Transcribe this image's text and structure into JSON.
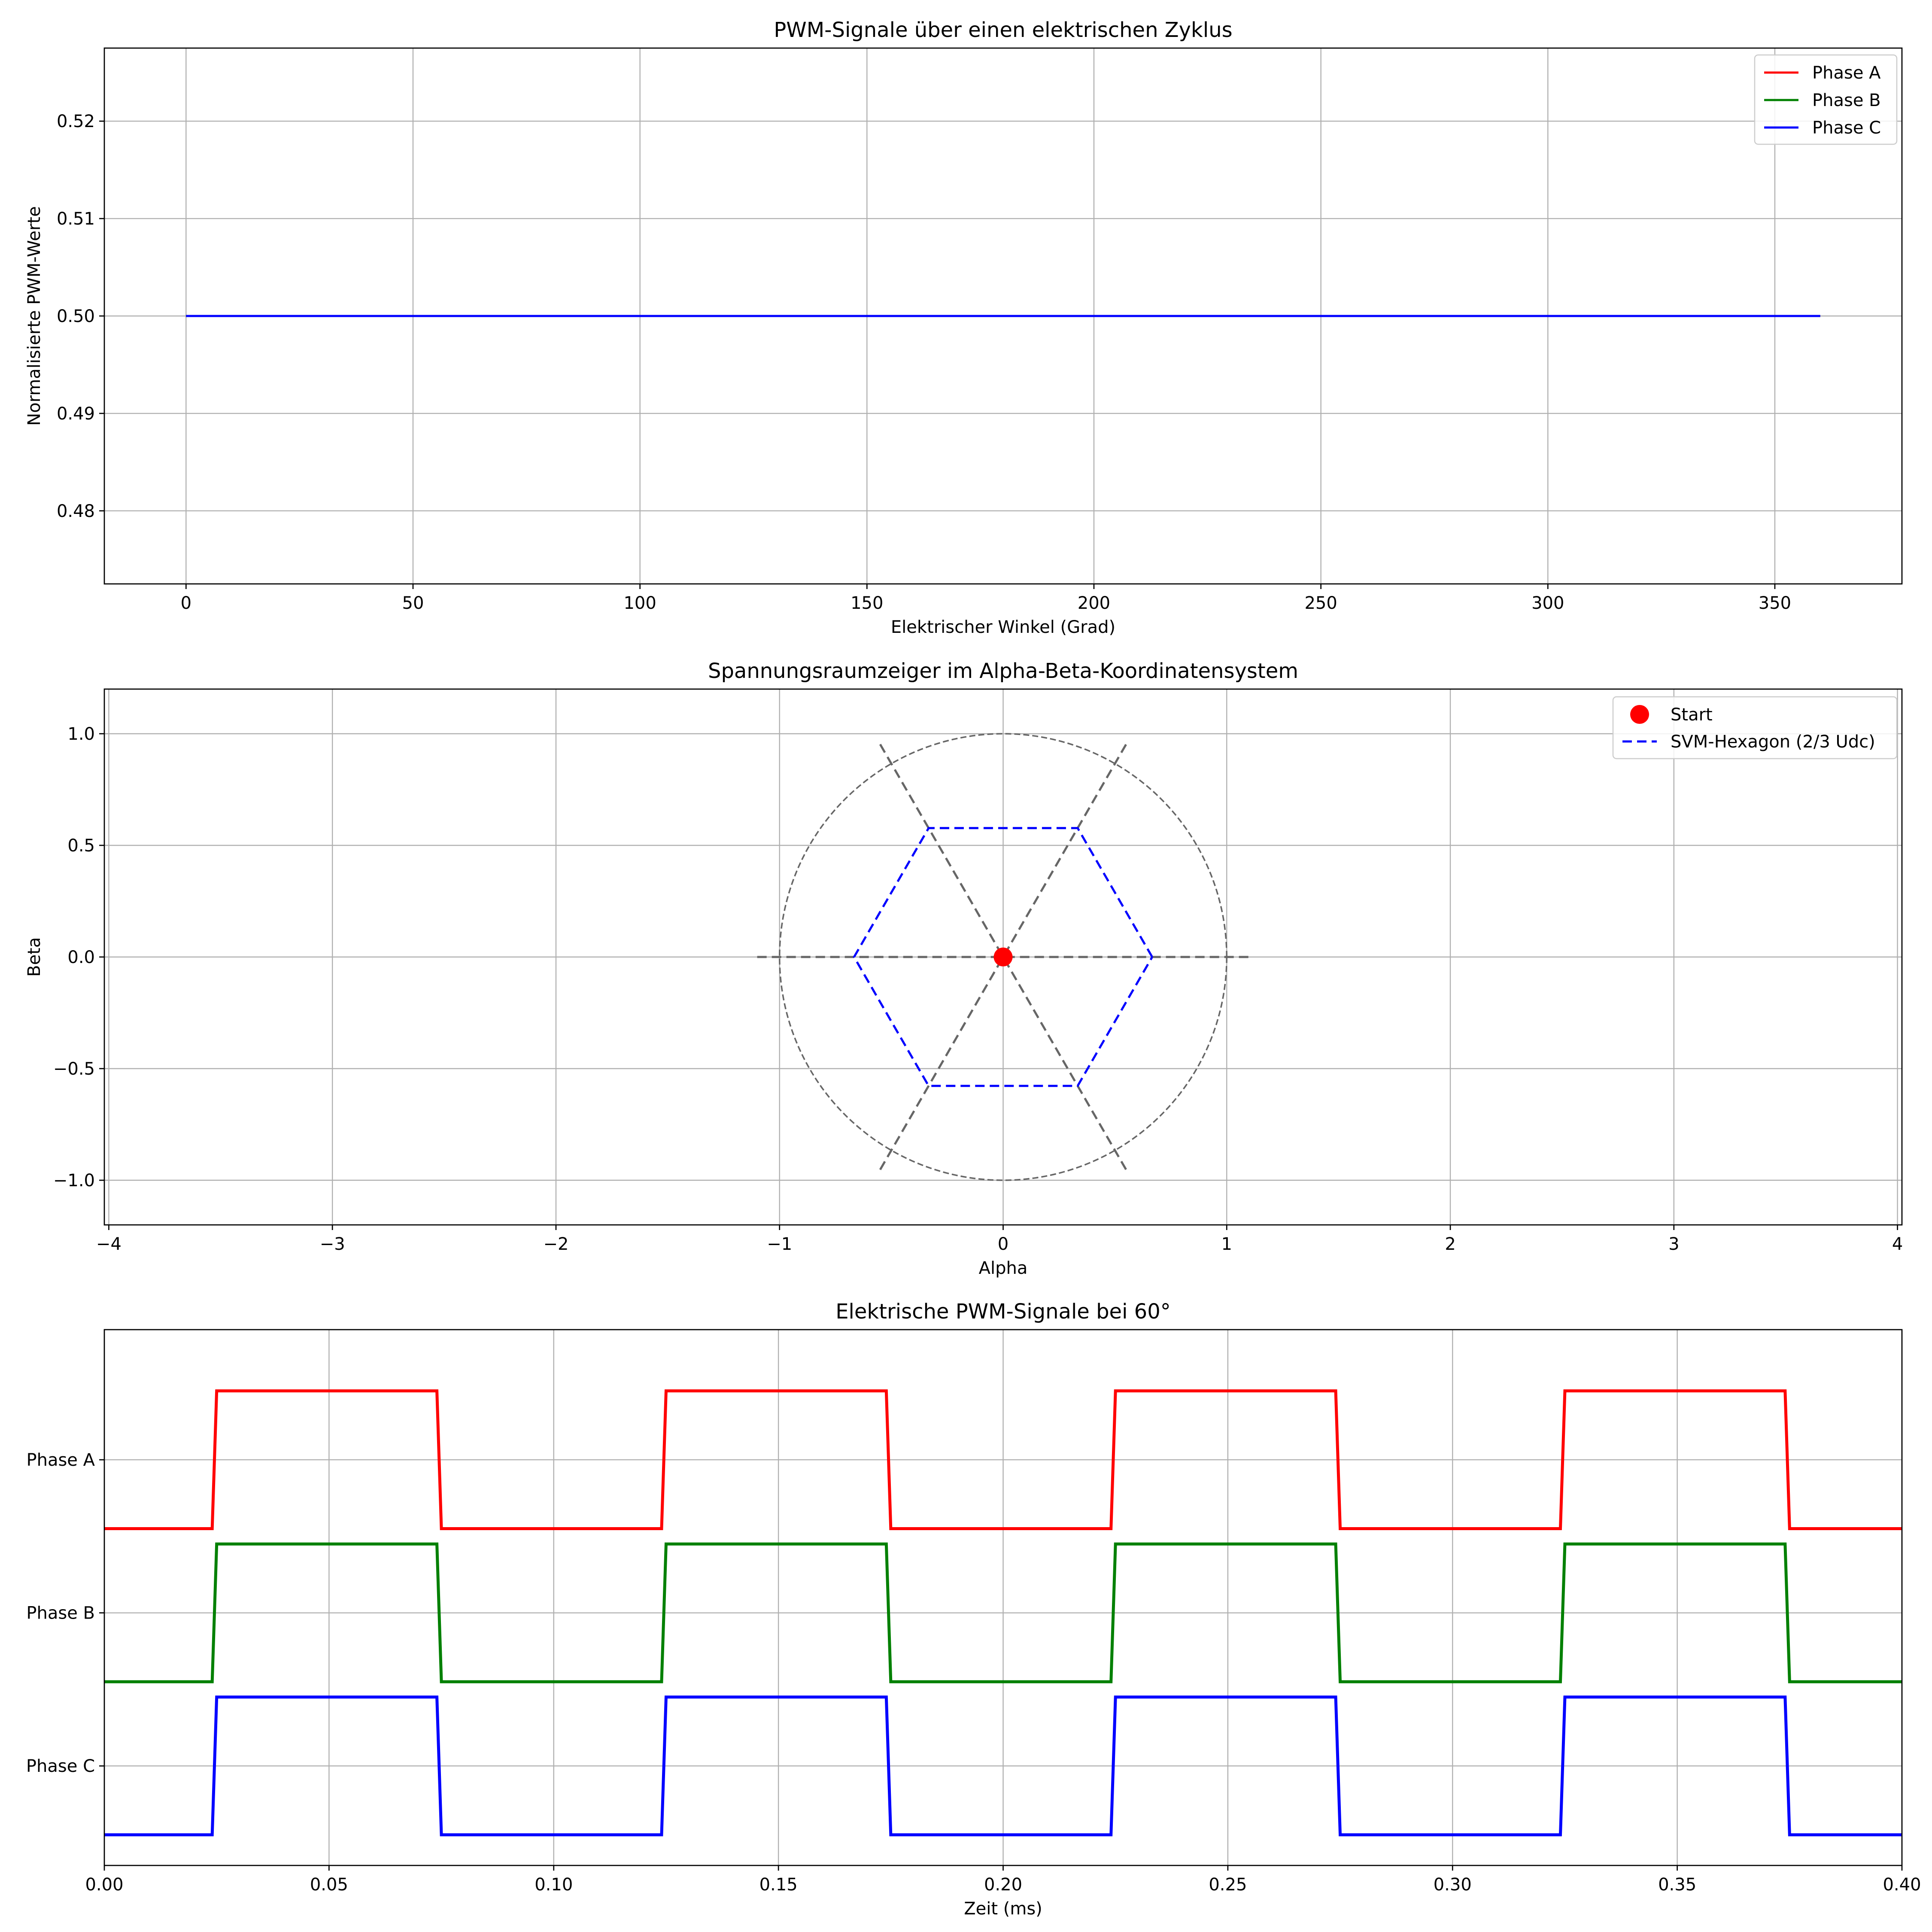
{
  "chart_data": [
    {
      "type": "line",
      "title": "PWM-Signale über einen elektrischen Zyklus",
      "xlabel": "Elektrischer Winkel (Grad)",
      "ylabel": "Normalisierte PWM-Werte",
      "xlim": [
        -18,
        378
      ],
      "ylim": [
        0.4725,
        0.5275
      ],
      "xticks": [
        0,
        50,
        100,
        150,
        200,
        250,
        300,
        350
      ],
      "xtick_labels": [
        "0",
        "50",
        "100",
        "150",
        "200",
        "250",
        "300",
        "350"
      ],
      "yticks": [
        0.48,
        0.49,
        0.5,
        0.51,
        0.52
      ],
      "ytick_labels": [
        "0.48",
        "0.49",
        "0.50",
        "0.51",
        "0.52"
      ],
      "grid": true,
      "legend_position": "top-right",
      "series": [
        {
          "name": "Phase A",
          "color": "#ff0000",
          "x": [
            0,
            360
          ],
          "y": [
            0.5,
            0.5
          ]
        },
        {
          "name": "Phase B",
          "color": "#008000",
          "x": [
            0,
            360
          ],
          "y": [
            0.5,
            0.5
          ]
        },
        {
          "name": "Phase C",
          "color": "#0000ff",
          "x": [
            0,
            360
          ],
          "y": [
            0.5,
            0.5
          ]
        }
      ]
    },
    {
      "type": "scatter",
      "title": "Spannungsraumzeiger im Alpha-Beta-Koordinatensystem",
      "xlabel": "Alpha",
      "ylabel": "Beta",
      "xlim": [
        -4.02,
        4.02
      ],
      "ylim": [
        -1.2,
        1.2
      ],
      "xticks": [
        -4,
        -3,
        -2,
        -1,
        0,
        1,
        2,
        3,
        4
      ],
      "xtick_labels": [
        "−4",
        "−3",
        "−2",
        "−1",
        "0",
        "1",
        "2",
        "3",
        "4"
      ],
      "yticks": [
        -1,
        -0.5,
        0,
        0.5,
        1
      ],
      "ytick_labels": [
        "−1.0",
        "−0.5",
        "0.0",
        "0.5",
        "1.0"
      ],
      "grid": true,
      "legend_position": "top-right",
      "start_point": {
        "name": "Start",
        "color": "#ff0000",
        "x": 0,
        "y": 0
      },
      "hexagon": {
        "name": "SVM-Hexagon (2/3 Udc)",
        "color": "#0000ff",
        "x": [
          0.6667,
          0.3333,
          -0.3333,
          -0.6667,
          -0.3333,
          0.3333,
          0.6667
        ],
        "y": [
          0,
          0.5774,
          0.5774,
          0,
          -0.5774,
          -0.5774,
          0
        ]
      },
      "circle": {
        "color": "#666666",
        "radius": 1
      },
      "sector_lines": {
        "color": "#666666",
        "segments": [
          {
            "x1": -1.1,
            "y1": 0,
            "x2": 1.1,
            "y2": 0
          },
          {
            "x1": -0.55,
            "y1": -0.9526,
            "x2": 0.55,
            "y2": 0.9526
          },
          {
            "x1": -0.55,
            "y1": 0.9526,
            "x2": 0.55,
            "y2": -0.9526
          }
        ]
      }
    },
    {
      "type": "line",
      "title": "Elektrische PWM-Signale bei 60°",
      "xlabel": "Zeit (ms)",
      "ylabel": "",
      "xlim": [
        0,
        0.4
      ],
      "ylim": [
        -0.65,
        2.85
      ],
      "xticks": [
        0,
        0.05,
        0.1,
        0.15,
        0.2,
        0.25,
        0.3,
        0.35,
        0.4
      ],
      "xtick_labels": [
        "0.00",
        "0.05",
        "0.10",
        "0.15",
        "0.20",
        "0.25",
        "0.30",
        "0.35",
        "0.40"
      ],
      "yticks": [
        0,
        1,
        2
      ],
      "ytick_labels": [
        "Phase C",
        "Phase B",
        "Phase A"
      ],
      "grid": true,
      "series": [
        {
          "name": "Phase A",
          "color": "#ff0000",
          "x": [
            0,
            0.024,
            0.025,
            0.074,
            0.075,
            0.124,
            0.125,
            0.174,
            0.175,
            0.224,
            0.225,
            0.274,
            0.275,
            0.324,
            0.325,
            0.374,
            0.375,
            0.4
          ],
          "y": [
            1.55,
            1.55,
            2.45,
            2.45,
            1.55,
            1.55,
            2.45,
            2.45,
            1.55,
            1.55,
            2.45,
            2.45,
            1.55,
            1.55,
            2.45,
            2.45,
            1.55,
            1.55
          ]
        },
        {
          "name": "Phase B",
          "color": "#008000",
          "x": [
            0,
            0.024,
            0.025,
            0.074,
            0.075,
            0.124,
            0.125,
            0.174,
            0.175,
            0.224,
            0.225,
            0.274,
            0.275,
            0.324,
            0.325,
            0.374,
            0.375,
            0.4
          ],
          "y": [
            0.55,
            0.55,
            1.45,
            1.45,
            0.55,
            0.55,
            1.45,
            1.45,
            0.55,
            0.55,
            1.45,
            1.45,
            0.55,
            0.55,
            1.45,
            1.45,
            0.55,
            0.55
          ]
        },
        {
          "name": "Phase C",
          "color": "#0000ff",
          "x": [
            0,
            0.024,
            0.025,
            0.074,
            0.075,
            0.124,
            0.125,
            0.174,
            0.175,
            0.224,
            0.225,
            0.274,
            0.275,
            0.324,
            0.325,
            0.374,
            0.375,
            0.4
          ],
          "y": [
            -0.45,
            -0.45,
            0.45,
            0.45,
            -0.45,
            -0.45,
            0.45,
            0.45,
            -0.45,
            -0.45,
            0.45,
            0.45,
            -0.45,
            -0.45,
            0.45,
            0.45,
            -0.45,
            -0.45
          ]
        }
      ]
    }
  ]
}
